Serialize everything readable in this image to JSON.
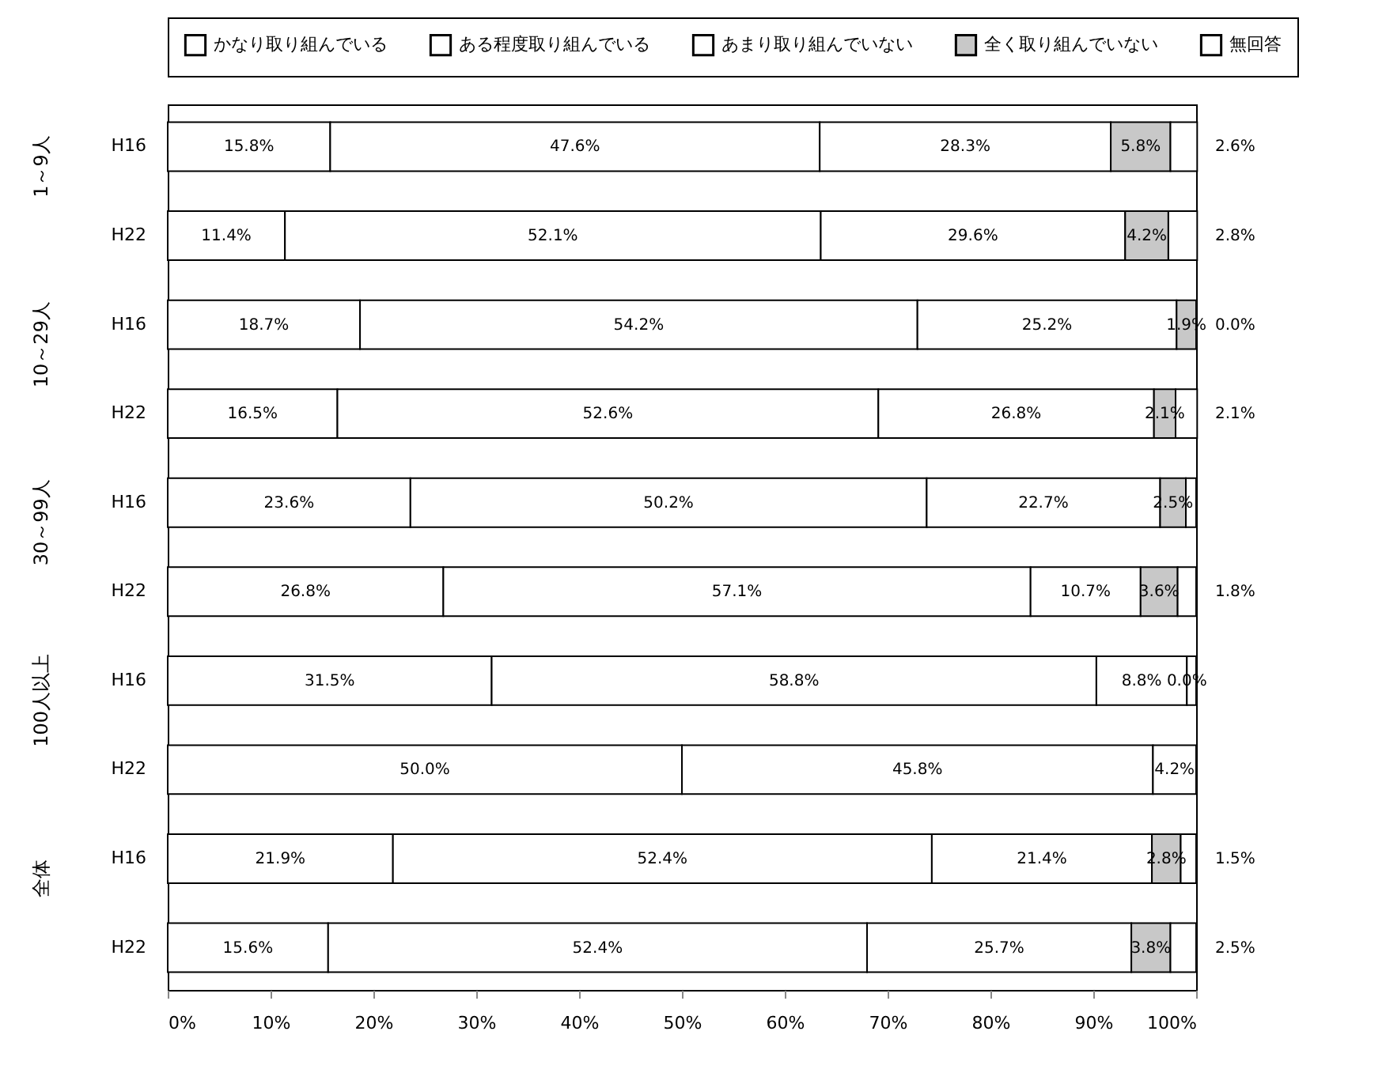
{
  "chart_data": {
    "type": "bar",
    "orientation": "horizontal",
    "stacked": true,
    "categories": [
      "H16",
      "H22",
      "H16",
      "H22",
      "H16",
      "H22",
      "H16",
      "H22",
      "H16",
      "H22"
    ],
    "annotations": [
      "1～9人",
      "10～29人",
      "30～99人",
      "100人以上",
      "全体"
    ],
    "xlim": [
      0,
      100
    ],
    "xticks": [
      {
        "value": 0,
        "label": "0%"
      },
      {
        "value": 10,
        "label": "10%"
      },
      {
        "value": 20,
        "label": "20%"
      },
      {
        "value": 30,
        "label": "30%"
      },
      {
        "value": 40,
        "label": "40%"
      },
      {
        "value": 50,
        "label": "50%"
      },
      {
        "value": 60,
        "label": "60%"
      },
      {
        "value": 70,
        "label": "70%"
      },
      {
        "value": 80,
        "label": "80%"
      },
      {
        "value": 90,
        "label": "90%"
      },
      {
        "value": 100,
        "label": "100%"
      }
    ],
    "legend": "top",
    "series": [
      {
        "name": "かなり取り組んでいる",
        "color": "#ffffff",
        "values": [
          15.8,
          11.4,
          18.7,
          16.5,
          23.6,
          26.8,
          31.5,
          50.0,
          21.9,
          15.6
        ],
        "value_labels": [
          "15.8%",
          "11.4%",
          "18.7%",
          "16.5%",
          "23.6%",
          "26.8%",
          "31.5%",
          "50.0%",
          "21.9%",
          "15.6%"
        ]
      },
      {
        "name": "ある程度取り組んでいる",
        "color": "#ffffff",
        "values": [
          47.6,
          52.1,
          54.2,
          52.6,
          50.2,
          57.1,
          58.8,
          45.8,
          52.4,
          52.4
        ],
        "value_labels": [
          "47.6%",
          "52.1%",
          "54.2%",
          "52.6%",
          "50.2%",
          "57.1%",
          "58.8%",
          "45.8%",
          "52.4%",
          "52.4%"
        ]
      },
      {
        "name": "あまり取り組んでいない",
        "color": "#ffffff",
        "values": [
          28.3,
          29.6,
          25.2,
          26.8,
          22.7,
          10.7,
          8.8,
          4.2,
          21.4,
          25.7
        ],
        "value_labels": [
          "28.3%",
          "29.6%",
          "25.2%",
          "26.8%",
          "22.7%",
          "10.7%",
          "8.8%",
          "4.2%",
          "21.4%",
          "25.7%"
        ]
      },
      {
        "name": "全く取り組んでいない",
        "color": "#c8c8c8",
        "values": [
          5.8,
          4.2,
          1.9,
          2.1,
          2.5,
          3.6,
          0.0,
          null,
          2.8,
          3.8
        ],
        "value_labels": [
          "5.8%",
          "4.2%",
          "1.9%",
          "2.1%",
          "2.5%",
          "3.6%",
          "0.0%",
          null,
          "2.8%",
          "3.8%"
        ]
      },
      {
        "name": "無回答",
        "color": "#ffffff",
        "values": [
          2.6,
          2.8,
          0.0,
          2.1,
          1.0,
          1.8,
          0.9,
          null,
          1.5,
          2.5
        ],
        "value_labels": [
          "2.6%",
          "2.8%",
          "0.0%",
          "2.1%",
          null,
          "1.8%",
          null,
          null,
          "1.5%",
          "2.5%"
        ]
      }
    ]
  }
}
